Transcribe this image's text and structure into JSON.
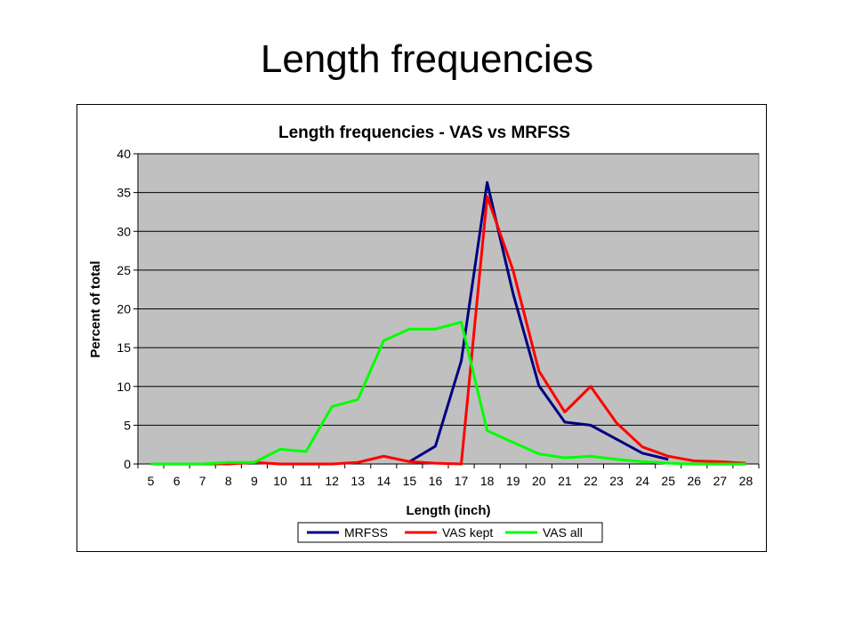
{
  "slide": {
    "title": "Length frequencies"
  },
  "chart_data": {
    "type": "line",
    "title": "Length frequencies - VAS vs MRFSS",
    "xlabel": "Length (inch)",
    "ylabel": "Percent of total",
    "ylim": [
      0,
      40
    ],
    "yticks": [
      0,
      5,
      10,
      15,
      20,
      25,
      30,
      35,
      40
    ],
    "grid": true,
    "plot_background": "#c0c0c0",
    "legend_position": "bottom",
    "categories": [
      "5",
      "6",
      "7",
      "8",
      "9",
      "10",
      "11",
      "12",
      "13",
      "14",
      "15",
      "16",
      "17",
      "18",
      "19",
      "20",
      "21",
      "22",
      "23",
      "24",
      "25",
      "26",
      "27",
      "28"
    ],
    "series": [
      {
        "name": "MRFSS",
        "color": "#000080",
        "values": [
          null,
          null,
          null,
          null,
          null,
          null,
          null,
          null,
          null,
          null,
          0.3,
          2.3,
          13.3,
          36.3,
          22.0,
          10.1,
          5.4,
          5.0,
          3.2,
          1.4,
          0.6,
          null,
          null,
          null
        ]
      },
      {
        "name": "VAS kept",
        "color": "#ff0000",
        "values": [
          0,
          0,
          0,
          0,
          0.2,
          0,
          0,
          0,
          0.2,
          1.0,
          0.3,
          0.1,
          0,
          34.5,
          25.0,
          12.0,
          6.7,
          10.0,
          5.3,
          2.2,
          1.0,
          0.4,
          0.3,
          0.1
        ]
      },
      {
        "name": "VAS all",
        "color": "#00ff00",
        "values": [
          0,
          0,
          0,
          0.2,
          0.2,
          1.9,
          1.6,
          7.4,
          8.3,
          15.9,
          17.4,
          17.4,
          18.3,
          4.3,
          2.8,
          1.3,
          0.8,
          1.0,
          0.6,
          0.3,
          0.1,
          0,
          0,
          0
        ]
      }
    ]
  }
}
